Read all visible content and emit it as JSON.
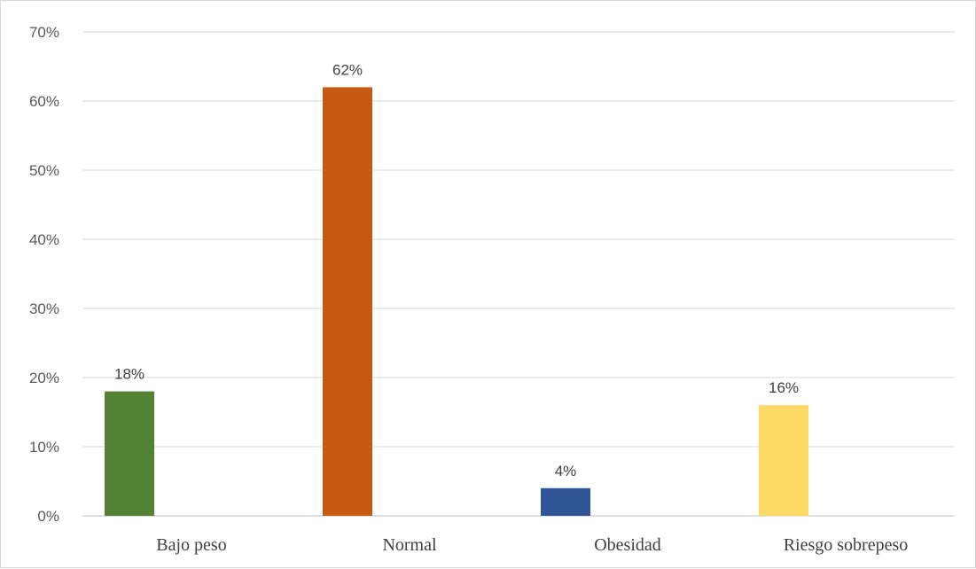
{
  "chart_data": {
    "type": "bar",
    "title": "",
    "xlabel": "",
    "ylabel": "",
    "categories": [
      "Bajo peso",
      "Normal",
      "Obesidad",
      "Riesgo sobrepeso"
    ],
    "values": [
      18,
      62,
      4,
      16
    ],
    "data_labels": [
      "18%",
      "62%",
      "4%",
      "16%"
    ],
    "colors": [
      "#548235",
      "#c55a11",
      "#2f5597",
      "#ffd966"
    ],
    "ylim": [
      0,
      70
    ],
    "y_ticks": [
      0,
      10,
      20,
      30,
      40,
      50,
      60,
      70
    ],
    "y_tick_labels": [
      "0%",
      "10%",
      "20%",
      "30%",
      "40%",
      "50%",
      "60%",
      "70%"
    ],
    "grid": true,
    "legend": "none"
  }
}
